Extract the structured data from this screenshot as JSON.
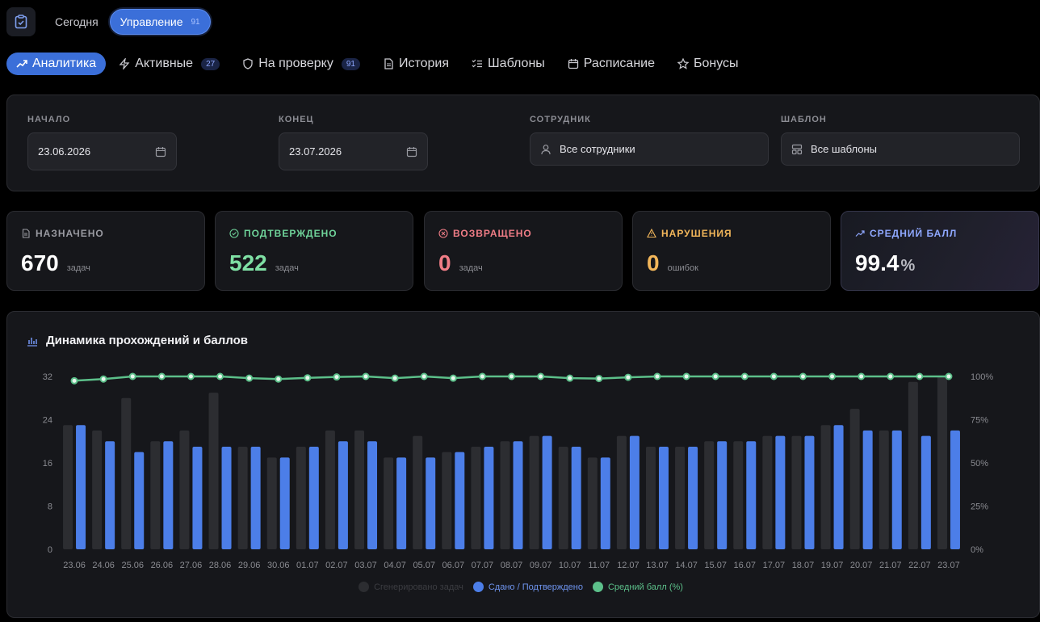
{
  "header": {
    "modes": [
      {
        "label": "Сегодня"
      },
      {
        "label": "Управление",
        "count": "91"
      }
    ]
  },
  "tabs": [
    {
      "label": "Аналитика",
      "icon": "trend-icon",
      "active": true
    },
    {
      "label": "Активные",
      "icon": "bolt-icon",
      "badge": "27"
    },
    {
      "label": "На проверку",
      "icon": "shield-icon",
      "badge": "91"
    },
    {
      "label": "История",
      "icon": "document-icon"
    },
    {
      "label": "Шаблоны",
      "icon": "checklist-icon"
    },
    {
      "label": "Расписание",
      "icon": "calendar-icon"
    },
    {
      "label": "Бонусы",
      "icon": "star-icon"
    }
  ],
  "filters": {
    "start": {
      "label": "НАЧАЛО",
      "value": "23.06.2026"
    },
    "end": {
      "label": "КОНЕЦ",
      "value": "23.07.2026"
    },
    "employee": {
      "label": "СОТРУДНИК",
      "value": "Все сотрудники"
    },
    "template": {
      "label": "ШАБЛОН",
      "value": "Все шаблоны"
    }
  },
  "stats": {
    "assigned": {
      "label": "НАЗНАЧЕНО",
      "value": "670",
      "unit": "задач",
      "color": "#9a9ba2"
    },
    "confirmed": {
      "label": "ПОДТВЕРЖДЕНО",
      "value": "522",
      "unit": "задач",
      "color": "#6fd39a"
    },
    "returned": {
      "label": "ВОЗВРАЩЕНО",
      "value": "0",
      "unit": "задач",
      "color": "#f07d86"
    },
    "violations": {
      "label": "НАРУШЕНИЯ",
      "value": "0",
      "unit": "ошибок",
      "color": "#f2b65a"
    },
    "avg_score": {
      "label": "СРЕДНИЙ БАЛЛ",
      "value": "99.4",
      "unit": "%",
      "color": "#8fa8ff"
    }
  },
  "chart_title": "Динамика прохождений и баллов",
  "chart_data": {
    "type": "bar",
    "categories": [
      "23.06",
      "24.06",
      "25.06",
      "26.06",
      "27.06",
      "28.06",
      "29.06",
      "30.06",
      "01.07",
      "02.07",
      "03.07",
      "04.07",
      "05.07",
      "06.07",
      "07.07",
      "08.07",
      "09.07",
      "10.07",
      "11.07",
      "12.07",
      "13.07",
      "14.07",
      "15.07",
      "16.07",
      "17.07",
      "18.07",
      "19.07",
      "20.07",
      "21.07",
      "22.07",
      "23.07"
    ],
    "series": [
      {
        "name": "Сгенерировано задач",
        "color": "#2c2d31",
        "values": [
          23,
          22,
          28,
          20,
          22,
          29,
          19,
          17,
          19,
          22,
          22,
          17,
          21,
          18,
          19,
          20,
          21,
          19,
          17,
          21,
          19,
          19,
          20,
          20,
          21,
          21,
          23,
          26,
          22,
          31,
          32
        ]
      },
      {
        "name": "Сдано / Подтверждено",
        "color": "#4c7ee8",
        "values": [
          23,
          20,
          18,
          20,
          19,
          19,
          19,
          17,
          19,
          20,
          20,
          17,
          17,
          18,
          19,
          20,
          21,
          19,
          17,
          21,
          19,
          19,
          20,
          20,
          21,
          21,
          23,
          22,
          22,
          21,
          22
        ]
      },
      {
        "name": "Средний балл (%)",
        "color": "#5cc08a",
        "axis": "right",
        "values": [
          97.5,
          98.5,
          100,
          100,
          100,
          100,
          99,
          98.5,
          99.2,
          99.7,
          100,
          99,
          100,
          99,
          100,
          100,
          100,
          99,
          98.8,
          99.5,
          100,
          100,
          100,
          100,
          100,
          100,
          100,
          100,
          100,
          100,
          100
        ]
      }
    ],
    "y_left": {
      "ticks": [
        "0",
        "8",
        "16",
        "24",
        "32"
      ],
      "lim": [
        0,
        32
      ]
    },
    "y_right": {
      "ticks": [
        "0%",
        "25%",
        "50%",
        "75%",
        "100%"
      ],
      "lim": [
        0,
        100
      ]
    },
    "grid": false,
    "legend_position": "bottom"
  }
}
